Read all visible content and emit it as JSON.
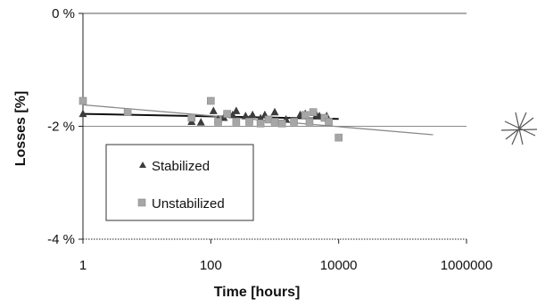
{
  "chart_data": {
    "type": "scatter",
    "title": "",
    "xlabel": "Time [hours]",
    "ylabel": "Losses [%]",
    "x_scale": "log",
    "xlim": [
      1,
      1000000
    ],
    "ylim": [
      -4,
      0
    ],
    "x_ticks": [
      {
        "value": 1,
        "label": "1"
      },
      {
        "value": 100,
        "label": "100"
      },
      {
        "value": 10000,
        "label": "10000"
      },
      {
        "value": 1000000,
        "label": "1000000"
      }
    ],
    "y_ticks": [
      {
        "value": 0,
        "label": "0 %"
      },
      {
        "value": -2,
        "label": "-2 %"
      },
      {
        "value": -4,
        "label": "-4 %"
      }
    ],
    "grid": {
      "horizontal": [
        -2
      ],
      "vertical": false
    },
    "legend": {
      "placement": "lower-left inside plot"
    },
    "series": [
      {
        "name": "Stabilized",
        "marker": "triangle",
        "color": "#3c3c3c",
        "points": [
          {
            "x": 1,
            "y": -1.78
          },
          {
            "x": 50,
            "y": -1.92
          },
          {
            "x": 70,
            "y": -1.93
          },
          {
            "x": 110,
            "y": -1.73
          },
          {
            "x": 130,
            "y": -1.88
          },
          {
            "x": 160,
            "y": -1.85
          },
          {
            "x": 220,
            "y": -1.8
          },
          {
            "x": 250,
            "y": -1.73
          },
          {
            "x": 350,
            "y": -1.82
          },
          {
            "x": 400,
            "y": -1.88
          },
          {
            "x": 450,
            "y": -1.8
          },
          {
            "x": 600,
            "y": -1.86
          },
          {
            "x": 700,
            "y": -1.8
          },
          {
            "x": 1000,
            "y": -1.75
          },
          {
            "x": 1500,
            "y": -1.88
          },
          {
            "x": 2500,
            "y": -1.8
          },
          {
            "x": 3000,
            "y": -1.78
          },
          {
            "x": 4500,
            "y": -1.8
          },
          {
            "x": 5000,
            "y": -1.82
          },
          {
            "x": 6500,
            "y": -1.82
          }
        ]
      },
      {
        "name": "Unstabilized",
        "marker": "square",
        "color": "#a6a6a6",
        "points": [
          {
            "x": 1,
            "y": -1.55
          },
          {
            "x": 5,
            "y": -1.75
          },
          {
            "x": 50,
            "y": -1.85
          },
          {
            "x": 100,
            "y": -1.55
          },
          {
            "x": 130,
            "y": -1.92
          },
          {
            "x": 180,
            "y": -1.78
          },
          {
            "x": 250,
            "y": -1.92
          },
          {
            "x": 400,
            "y": -1.92
          },
          {
            "x": 600,
            "y": -1.95
          },
          {
            "x": 800,
            "y": -1.88
          },
          {
            "x": 1000,
            "y": -1.92
          },
          {
            "x": 1300,
            "y": -1.95
          },
          {
            "x": 2000,
            "y": -1.92
          },
          {
            "x": 3000,
            "y": -1.8
          },
          {
            "x": 3500,
            "y": -1.92
          },
          {
            "x": 4000,
            "y": -1.75
          },
          {
            "x": 6000,
            "y": -1.85
          },
          {
            "x": 7000,
            "y": -1.92
          },
          {
            "x": 10000,
            "y": -2.2
          }
        ]
      }
    ],
    "trendlines": [
      {
        "series": "Stabilized",
        "color": "#111111",
        "points": [
          {
            "x": 1,
            "y": -1.78
          },
          {
            "x": 10000,
            "y": -1.87
          }
        ]
      },
      {
        "series": "Unstabilized",
        "color": "#8a8a8a",
        "points": [
          {
            "x": 1,
            "y": -1.62
          },
          {
            "x": 300000,
            "y": -2.15
          }
        ]
      }
    ]
  }
}
